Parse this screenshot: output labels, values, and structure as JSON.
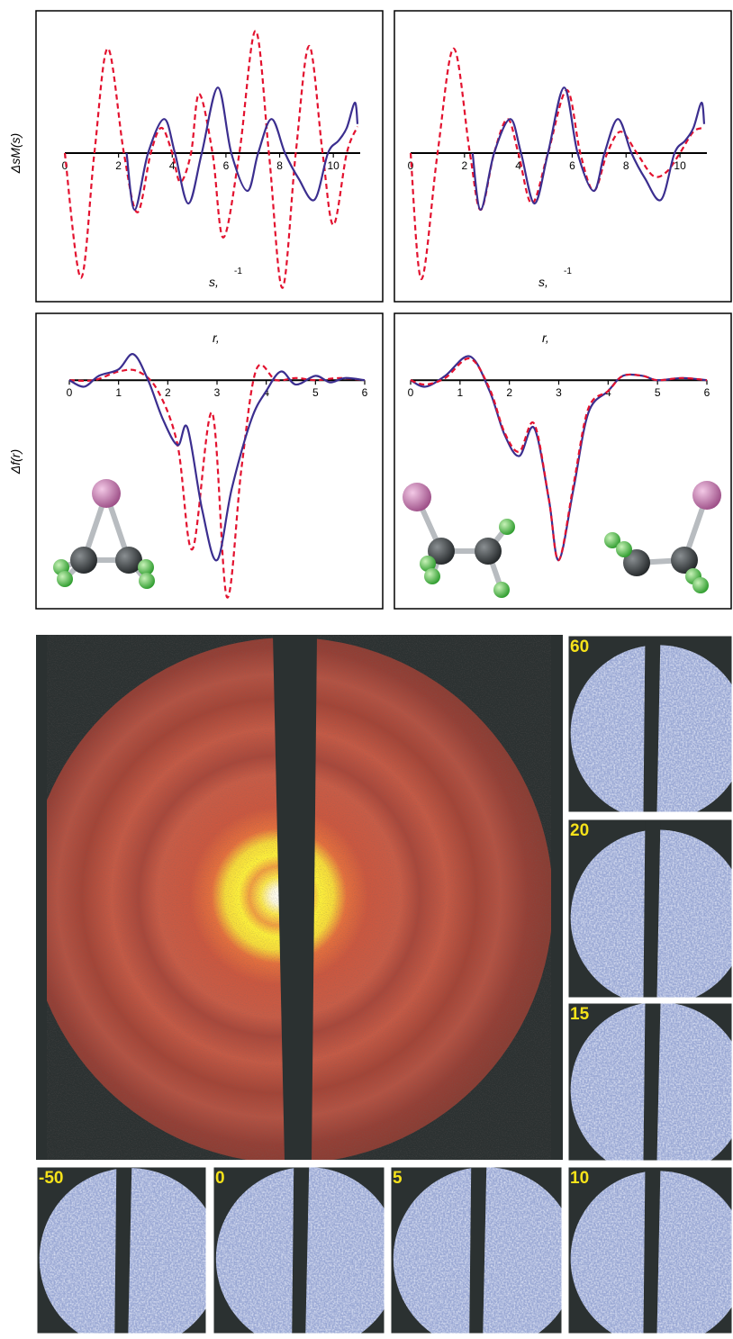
{
  "chart_data": [
    {
      "type": "line",
      "ylabel": "ΔsM(s)",
      "xlabel": "s,",
      "xlabel_superscript": "-1",
      "xlim": [
        0,
        11
      ],
      "ylim": [
        -1.1,
        1.1
      ],
      "xticks": [
        0,
        2,
        4,
        6,
        8,
        10
      ],
      "series": [
        {
          "color": "#e3122f",
          "style": "dashed",
          "x": [
            0,
            0.6,
            1.1,
            1.6,
            2.2,
            2.7,
            3.2,
            3.6,
            4.0,
            4.3,
            4.7,
            5.0,
            5.5,
            5.9,
            6.5,
            7.1,
            7.6,
            8.1,
            8.6,
            9.1,
            9.6,
            10.0,
            10.5,
            10.9
          ],
          "values": [
            0,
            -0.99,
            0,
            0.83,
            0,
            -0.47,
            0,
            0.2,
            0,
            -0.23,
            0,
            0.47,
            0,
            -0.67,
            0,
            0.97,
            0,
            -1.07,
            0,
            0.85,
            0,
            -0.57,
            0,
            0.21
          ]
        },
        {
          "color": "#3b2e8f",
          "style": "solid",
          "x": [
            2.3,
            2.6,
            3.1,
            3.7,
            4.1,
            4.6,
            5.1,
            5.7,
            6.2,
            6.8,
            7.2,
            7.7,
            8.2,
            8.7,
            9.3,
            9.8,
            10.2,
            10.5,
            10.8,
            10.9
          ],
          "values": [
            0,
            -0.45,
            0,
            0.27,
            0,
            -0.4,
            0,
            0.52,
            0,
            -0.3,
            0,
            0.27,
            0,
            -0.2,
            -0.37,
            0,
            0.1,
            0.2,
            0.4,
            0.23
          ]
        }
      ]
    },
    {
      "type": "line",
      "xlabel": "s,",
      "xlabel_superscript": "-1",
      "xlim": [
        0,
        11
      ],
      "ylim": [
        -1.1,
        1.1
      ],
      "xticks": [
        0,
        2,
        4,
        6,
        8,
        10
      ],
      "series": [
        {
          "color": "#e3122f",
          "style": "dashed",
          "x": [
            0,
            0.4,
            1.0,
            1.6,
            2.2,
            2.6,
            3.1,
            3.6,
            4.0,
            4.5,
            5.1,
            5.8,
            6.3,
            6.8,
            7.3,
            7.8,
            8.4,
            9.0,
            9.5,
            10.0,
            10.5,
            10.9
          ],
          "values": [
            0,
            -1.0,
            0,
            0.83,
            0,
            -0.45,
            0,
            0.27,
            0,
            -0.4,
            0,
            0.5,
            0,
            -0.3,
            0,
            0.17,
            0,
            -0.18,
            -0.15,
            0,
            0.17,
            0.2
          ]
        },
        {
          "color": "#3b2e8f",
          "style": "solid",
          "x": [
            2.3,
            2.6,
            3.1,
            3.7,
            4.1,
            4.6,
            5.1,
            5.7,
            6.2,
            6.8,
            7.2,
            7.7,
            8.2,
            8.7,
            9.3,
            9.8,
            10.2,
            10.5,
            10.8,
            10.9
          ],
          "values": [
            0,
            -0.45,
            0,
            0.27,
            0,
            -0.4,
            0,
            0.52,
            0,
            -0.3,
            0,
            0.27,
            0,
            -0.2,
            -0.37,
            0,
            0.1,
            0.2,
            0.4,
            0.23
          ]
        }
      ]
    },
    {
      "type": "line",
      "ylabel": "Δf(r)",
      "xlabel": "r,",
      "xlim": [
        0,
        6
      ],
      "ylim": [
        -1.05,
        0.3
      ],
      "xticks": [
        0,
        1,
        2,
        3,
        4,
        5,
        6
      ],
      "series": [
        {
          "color": "#e3122f",
          "style": "dashed",
          "x": [
            0,
            0.5,
            1.0,
            1.4,
            1.8,
            2.2,
            2.5,
            2.9,
            3.2,
            3.5,
            3.8,
            4.2,
            4.6,
            5.0,
            5.5,
            6.0
          ],
          "values": [
            0,
            0,
            0.04,
            0.04,
            -0.05,
            -0.3,
            -0.78,
            -0.15,
            -1.0,
            -0.4,
            0.05,
            0,
            0.01,
            0,
            0.01,
            0
          ]
        },
        {
          "color": "#3b2e8f",
          "style": "solid",
          "x": [
            0,
            0.3,
            0.6,
            1.0,
            1.3,
            1.6,
            1.9,
            2.2,
            2.4,
            2.7,
            3.0,
            3.3,
            3.7,
            4.0,
            4.3,
            4.6,
            5.0,
            5.3,
            5.6,
            6.0
          ],
          "values": [
            0,
            -0.03,
            0.02,
            0.05,
            0.12,
            0.0,
            -0.18,
            -0.3,
            -0.22,
            -0.6,
            -0.83,
            -0.5,
            -0.18,
            -0.05,
            0.04,
            -0.02,
            0.02,
            -0.01,
            0.01,
            0
          ]
        }
      ]
    },
    {
      "type": "line",
      "xlabel": "r,",
      "xlim": [
        0,
        6
      ],
      "ylim": [
        -1.05,
        0.3
      ],
      "xticks": [
        0,
        1,
        2,
        3,
        4,
        5,
        6
      ],
      "series": [
        {
          "color": "#3b2e8f",
          "style": "solid",
          "x": [
            0,
            0.3,
            0.7,
            1.2,
            1.6,
            1.9,
            2.2,
            2.5,
            2.8,
            3.0,
            3.3,
            3.6,
            4.0,
            4.3,
            4.7,
            5.0,
            5.5,
            6.0
          ],
          "values": [
            0,
            -0.03,
            0.02,
            0.11,
            -0.05,
            -0.25,
            -0.35,
            -0.22,
            -0.55,
            -0.83,
            -0.5,
            -0.15,
            -0.05,
            0.02,
            0.02,
            0,
            0.01,
            0
          ]
        },
        {
          "color": "#e3122f",
          "style": "dashed",
          "x": [
            0,
            0.3,
            0.7,
            1.2,
            1.6,
            1.9,
            2.2,
            2.5,
            2.8,
            3.0,
            3.3,
            3.6,
            4.0,
            4.3,
            4.7,
            5.0,
            5.5,
            6.0
          ],
          "values": [
            0,
            -0.02,
            0.01,
            0.1,
            -0.04,
            -0.24,
            -0.33,
            -0.2,
            -0.55,
            -0.83,
            -0.48,
            -0.13,
            -0.05,
            0.02,
            0.02,
            0,
            0.01,
            0
          ]
        }
      ]
    }
  ],
  "diffraction_panels": {
    "labels": [
      "60",
      "20",
      "15",
      "-50",
      "0",
      "5",
      "10"
    ]
  }
}
